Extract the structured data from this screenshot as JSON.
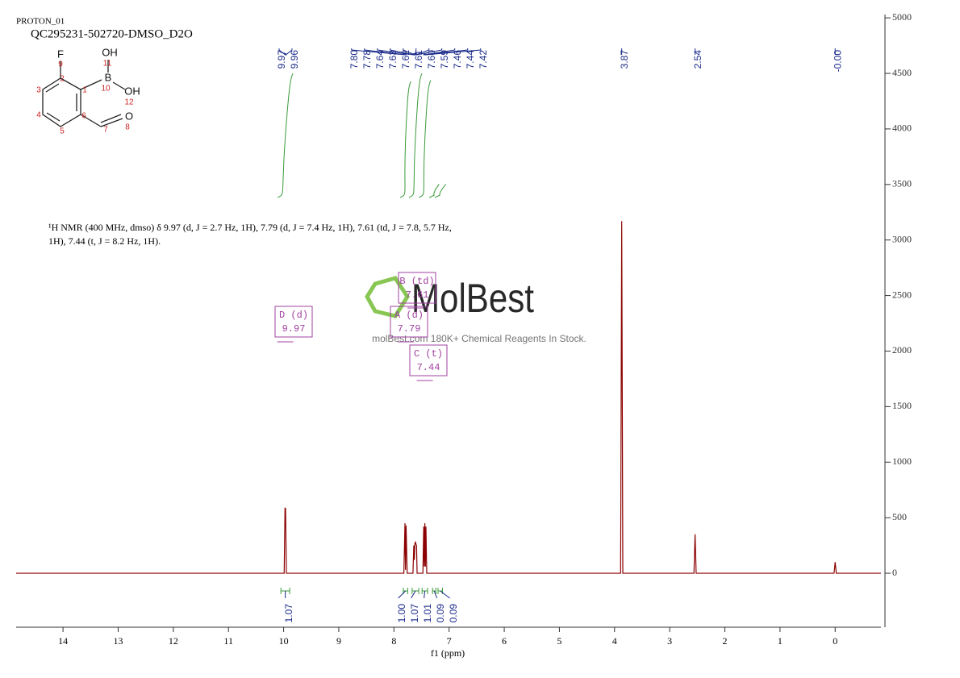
{
  "chart_data": {
    "type": "line",
    "title": "PROTON_01",
    "subtitle": "QC295231-502720-DMSO_D2O",
    "x_label": "f1 (ppm)",
    "description": [
      "¹H NMR (400 MHz, dmso) δ 9.97 (d, J = 2.7 Hz, 1H), 7.79 (d, J = 7.4 Hz, 1H), 7.61 (td, J = 7.8, 5.7 Hz,",
      "1H), 7.44 (t, J = 8.2 Hz, 1H)."
    ],
    "xlim": [
      14.85,
      -0.83
    ],
    "ylim": [
      -486,
      5030
    ],
    "xticks": [
      14,
      13,
      12,
      11,
      10,
      9,
      8,
      7,
      6,
      5,
      4,
      3,
      2,
      1,
      0
    ],
    "yticks": [
      0,
      500,
      1000,
      1500,
      2000,
      2500,
      3000,
      3500,
      4000,
      4500,
      5000
    ],
    "series": [
      {
        "color": "#8b0000",
        "x": [
          14.85,
          9.99,
          9.975,
          9.965,
          9.95,
          7.82,
          7.8,
          7.79,
          7.78,
          7.76,
          7.655,
          7.64,
          7.63,
          7.62,
          7.61,
          7.6,
          7.59,
          7.58,
          7.475,
          7.46,
          7.45,
          7.44,
          7.43,
          7.42,
          7.405,
          3.89,
          3.87,
          3.85,
          2.56,
          2.54,
          2.52,
          0.02,
          0,
          -0.02,
          -0.83
        ],
        "values": [
          0,
          0,
          590,
          580,
          0,
          0,
          450,
          30,
          430,
          0,
          0,
          250,
          120,
          270,
          280,
          260,
          250,
          0,
          0,
          420,
          60,
          450,
          60,
          420,
          0,
          0,
          3170,
          0,
          0,
          350,
          0,
          0,
          100,
          0,
          0
        ]
      }
    ],
    "peak_labels": [
      9.97,
      9.96,
      {
        "value": 7.8,
        "label": "7.80"
      },
      7.78,
      7.64,
      7.63,
      7.62,
      7.61,
      {
        "value": 7.6,
        "label": "7.60"
      },
      7.59,
      7.46,
      7.44,
      7.42,
      3.87,
      2.54,
      {
        "value": 0,
        "label": "-0.00"
      }
    ],
    "integrals": {
      "ranges": [
        [
          10.05,
          9.89
        ],
        [
          7.83,
          7.75
        ],
        [
          7.67,
          7.55
        ],
        [
          7.49,
          7.39
        ],
        [
          7.3,
          7.24
        ],
        [
          7.2,
          7.12
        ]
      ],
      "values": [
        1.07,
        1,
        1.07,
        1.01,
        0.09,
        0.09
      ],
      "value_labels": [
        "1.07",
        "1.00",
        "1.07",
        "1.01",
        "0.09",
        "0.09"
      ]
    },
    "multiplets": {
      "labels": [
        "D (d)",
        "B (td)",
        "A (d)",
        "C (t)"
      ],
      "shifts": [
        9.97,
        7.61,
        7.79,
        7.44
      ]
    }
  },
  "molecule": {
    "atoms": [
      "F",
      "OH",
      "B",
      "OH",
      "O"
    ],
    "numbers": [
      "9",
      "11",
      "1",
      "10",
      "12",
      "3",
      "2",
      "4",
      "6",
      "5",
      "7",
      "8"
    ]
  },
  "watermark": {
    "logo": "MolBest",
    "tagline": "molBest.com 180K+ Chemical Reagents In Stock."
  }
}
